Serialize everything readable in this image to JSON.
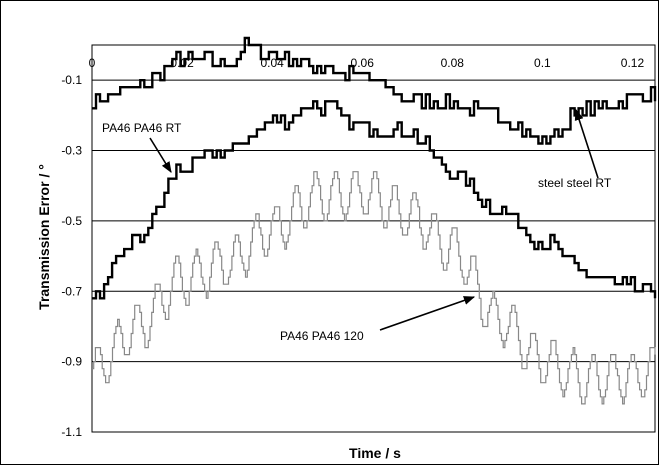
{
  "chart_data": {
    "type": "line",
    "xlabel": "Time / s",
    "ylabel": "Transmission Error / °",
    "xlim": [
      0,
      0.125
    ],
    "ylim": [
      -1.1,
      0
    ],
    "x_ticks": [
      "0",
      "0.02",
      "0.04",
      "0.06",
      "0.08",
      "0.1",
      "0.12"
    ],
    "y_ticks": [
      "-0.1",
      "-0.3",
      "-0.5",
      "-0.7",
      "-0.9",
      "-1.1"
    ],
    "grid": "horizontal",
    "series": [
      {
        "name": "steel steel RT",
        "color": "#000000",
        "x": [
          0,
          0.01,
          0.02,
          0.03,
          0.035,
          0.04,
          0.05,
          0.06,
          0.07,
          0.08,
          0.09,
          0.1,
          0.11,
          0.12,
          0.125
        ],
        "y": [
          -0.15,
          -0.12,
          -0.04,
          -0.05,
          0.0,
          -0.03,
          -0.06,
          -0.09,
          -0.15,
          -0.17,
          -0.2,
          -0.27,
          -0.18,
          -0.15,
          -0.14
        ]
      },
      {
        "name": "PA46 PA46 RT",
        "color": "#000000",
        "x": [
          0,
          0.01,
          0.02,
          0.03,
          0.04,
          0.05,
          0.06,
          0.07,
          0.08,
          0.09,
          0.1,
          0.11,
          0.12,
          0.125
        ],
        "y": [
          -0.72,
          -0.55,
          -0.35,
          -0.3,
          -0.22,
          -0.17,
          -0.23,
          -0.25,
          -0.36,
          -0.47,
          -0.56,
          -0.65,
          -0.69,
          -0.7
        ]
      },
      {
        "name": "PA46 PA46 120",
        "color": "#888888",
        "x": [
          0,
          0.01,
          0.02,
          0.03,
          0.04,
          0.05,
          0.06,
          0.07,
          0.08,
          0.09,
          0.1,
          0.11,
          0.12,
          0.125
        ],
        "y": [
          -0.93,
          -0.8,
          -0.67,
          -0.62,
          -0.52,
          -0.43,
          -0.42,
          -0.48,
          -0.58,
          -0.78,
          -0.9,
          -0.95,
          -0.94,
          -0.92
        ],
        "ripple": 0.07
      }
    ],
    "annotations": [
      {
        "text": "PA46 PA46 RT",
        "x": 0.018,
        "y": -0.33
      },
      {
        "text": "steel steel RT",
        "x": 0.106,
        "y": -0.2
      },
      {
        "text": "PA46 PA46 120",
        "x": 0.0835,
        "y": -0.73
      }
    ]
  }
}
